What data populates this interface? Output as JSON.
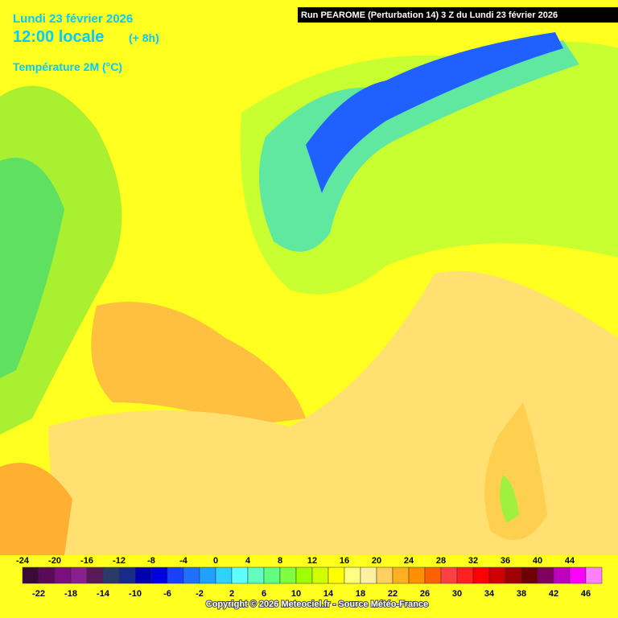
{
  "header": {
    "date": "Lundi 23 février 2026",
    "time": "12:00 locale",
    "offset": "(+ 8h)",
    "variable": "Température 2M (°C)",
    "run": "Run PEAROME (Perturbation 14) 3 Z du Lundi 23 février 2026"
  },
  "scale": {
    "ticks": [
      -24,
      -22,
      -20,
      -18,
      -16,
      -14,
      -12,
      -10,
      -8,
      -6,
      -4,
      -2,
      0,
      2,
      4,
      6,
      8,
      10,
      12,
      14,
      16,
      18,
      20,
      22,
      24,
      26,
      28,
      30,
      32,
      34,
      36,
      38,
      40,
      42,
      44,
      46
    ],
    "colors": [
      "#3a0a3a",
      "#5a0a5a",
      "#7a1080",
      "#8a2090",
      "#5a1a5a",
      "#2a3a6a",
      "#1a2a8a",
      "#0000b0",
      "#0000e0",
      "#1a40ff",
      "#2070ff",
      "#20a0ff",
      "#30d0ff",
      "#60ffff",
      "#60ffc0",
      "#60ff80",
      "#80ff40",
      "#a0ff00",
      "#d0ff00",
      "#ffff00",
      "#ffff80",
      "#fff0a0",
      "#ffd060",
      "#ffb020",
      "#ff9000",
      "#ff6000",
      "#ff4040",
      "#ff2020",
      "#ff0000",
      "#d00000",
      "#a00000",
      "#700000",
      "#800060",
      "#c000c0",
      "#ff00ff",
      "#ff80ff"
    ]
  },
  "footer": {
    "copyright": "Copyright © 2026 Meteociel.fr - Source Météo-France"
  }
}
